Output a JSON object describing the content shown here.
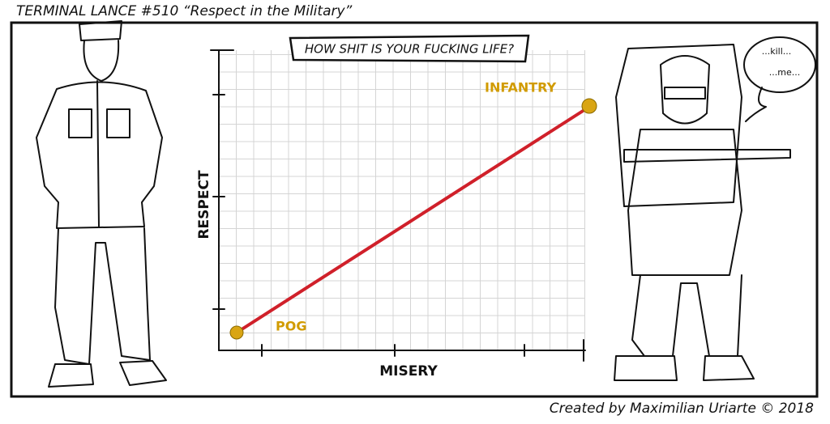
{
  "header": {
    "title": "TERMINAL LANCE #510 “Respect in the Military”"
  },
  "panel": {
    "chart": {
      "title": "HOW SHIT IS YOUR FUCKING LIFE?",
      "y_label": "RESPECT",
      "x_label": "MISERY",
      "points": [
        {
          "label": "POG"
        },
        {
          "label": "INFANTRY"
        }
      ]
    },
    "speech": [
      "...kill...",
      "...me..."
    ]
  },
  "footer": {
    "credit": "Created by Maximilian Uriarte © 2018"
  }
}
